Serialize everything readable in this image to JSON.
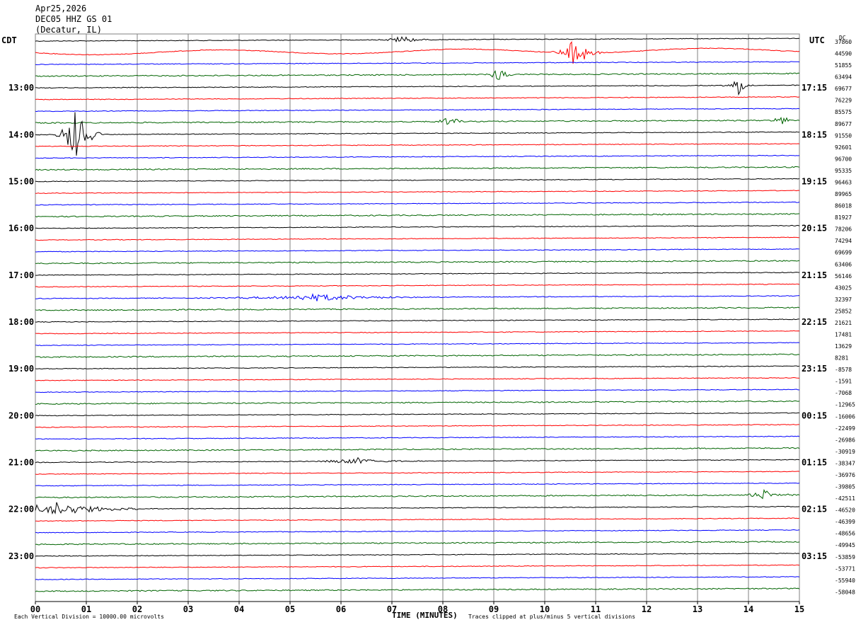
{
  "header": {
    "date": "Apr25,2026",
    "station": "DEC05 HHZ GS 01",
    "location": "(Decatur, IL)"
  },
  "left_tz": "CDT",
  "right_tz": "UTC",
  "dc_label": "DC",
  "footer": {
    "scale_note": "Each Vertical Division = 10000.00 microvolts",
    "xlabel": "TIME (MINUTES)",
    "clip_note": "Traces clipped at plus/minus 5 vertical divisions"
  },
  "chart_data": {
    "type": "line",
    "title": "DEC05 HHZ GS 01 (Decatur, IL)",
    "xlabel": "TIME (MINUTES)",
    "xlim": [
      0,
      15
    ],
    "x_ticks": [
      "00",
      "01",
      "02",
      "03",
      "04",
      "05",
      "06",
      "07",
      "08",
      "09",
      "10",
      "11",
      "12",
      "13",
      "14",
      "15"
    ],
    "grid": true,
    "trace_colors": [
      "#000000",
      "#ff0000",
      "#0000ff",
      "#006400"
    ],
    "left_hour_labels": [
      "13:00",
      "14:00",
      "15:00",
      "16:00",
      "17:00",
      "18:00",
      "19:00",
      "20:00",
      "21:00",
      "22:00",
      "23:00"
    ],
    "right_hour_labels": [
      "17:15",
      "18:15",
      "19:15",
      "20:15",
      "21:15",
      "22:15",
      "23:15",
      "00:15",
      "01:15",
      "02:15",
      "03:15"
    ],
    "dc_offsets": [
      "37860",
      "44590",
      "51855",
      "63494",
      "69677",
      "76229",
      "85575",
      "89677",
      "91550",
      "92601",
      "96700",
      "95335",
      "96463",
      "89965",
      "86018",
      "81927",
      "78206",
      "74294",
      "69699",
      "63406",
      "56146",
      "43025",
      "32397",
      "25852",
      "21621",
      "17481",
      "13629",
      "8281",
      "-8578",
      "-1591",
      "-7068",
      "-12965",
      "-16006",
      "-22499",
      "-26986",
      "-30919",
      "-38347",
      "-36976",
      "-39805",
      "-42511",
      "-46520",
      "-46399",
      "-48656",
      "-49945",
      "-53859",
      "-53771",
      "-55940",
      "-58048"
    ]
  }
}
